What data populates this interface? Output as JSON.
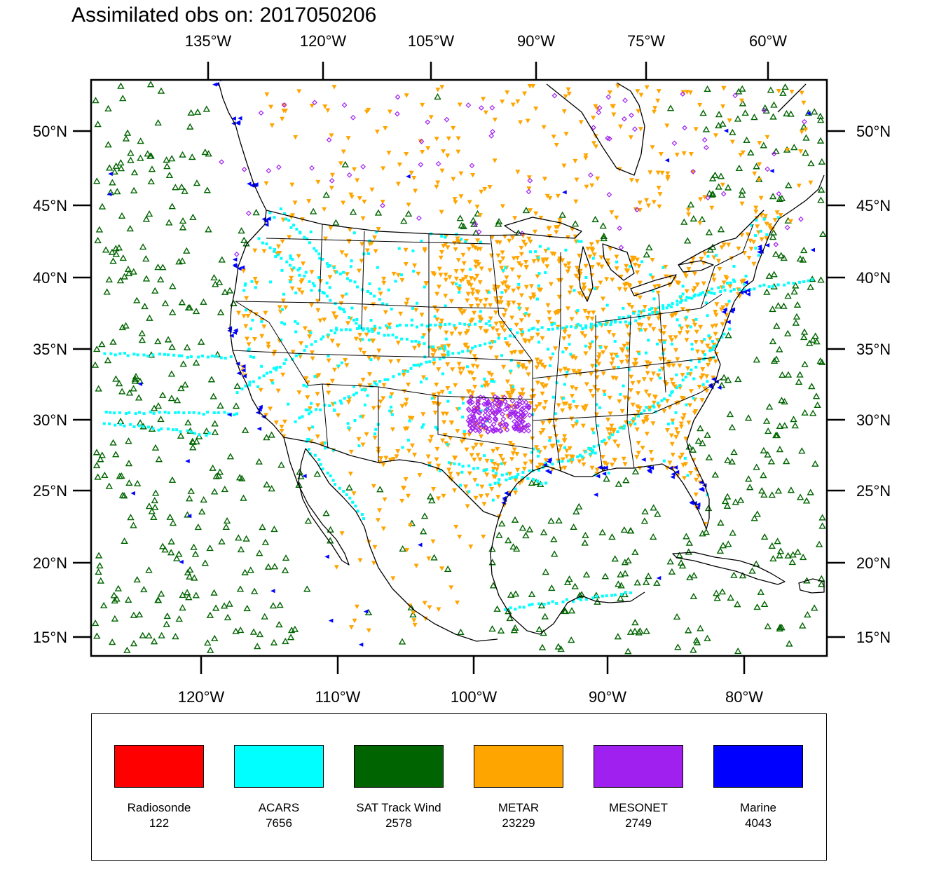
{
  "title": "Assimilated obs on: 2017050206",
  "axes": {
    "top_lon_labels": [
      "135°W",
      "120°W",
      "105°W",
      "90°W",
      "75°W",
      "60°W"
    ],
    "bottom_lon_labels": [
      "120°W",
      "110°W",
      "100°W",
      "90°W",
      "80°W"
    ],
    "lat_labels": [
      "50°N",
      "45°N",
      "40°N",
      "35°N",
      "30°N",
      "25°N",
      "20°N",
      "15°N"
    ]
  },
  "legend": [
    {
      "name": "Radiosonde",
      "count": "122",
      "color": "#ff0000"
    },
    {
      "name": "ACARS",
      "count": "7656",
      "color": "#00ffff"
    },
    {
      "name": "SAT Track Wind",
      "count": "2578",
      "color": "#006400"
    },
    {
      "name": "METAR",
      "count": "23229",
      "color": "#ffa500"
    },
    {
      "name": "MESONET",
      "count": "2749",
      "color": "#a020f0"
    },
    {
      "name": "Marine",
      "count": "4043",
      "color": "#0000ff"
    }
  ]
}
